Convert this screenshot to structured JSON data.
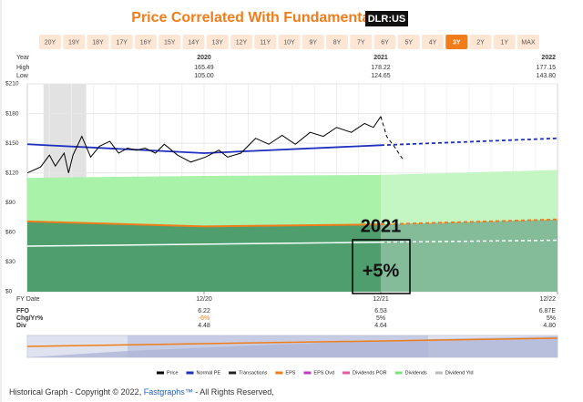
{
  "chart_data": {
    "type": "line",
    "title": "Price Correlated With Fundamentals",
    "ticker": "DLR:US",
    "timeframes": [
      "20Y",
      "19Y",
      "18Y",
      "17Y",
      "16Y",
      "15Y",
      "14Y",
      "13Y",
      "12Y",
      "11Y",
      "10Y",
      "9Y",
      "8Y",
      "7Y",
      "6Y",
      "5Y",
      "4Y",
      "3Y",
      "2Y",
      "1Y",
      "MAX"
    ],
    "active_timeframe": 17,
    "table": {
      "header": [
        "Year",
        "2020",
        "2021",
        "2022"
      ],
      "rows": [
        [
          "High",
          "165.49",
          "178.22",
          "177.15"
        ],
        [
          "Low",
          "105.00",
          "124.65",
          "143.80"
        ]
      ]
    },
    "fundamentals": [
      [
        "FFO",
        "6.22",
        "6.53",
        "6.87E"
      ],
      [
        "Chg/Yr%",
        "-6%",
        "5%",
        "5%"
      ],
      [
        "Div",
        "4.48",
        "4.64",
        "4.80"
      ]
    ],
    "x_label": "FY Date",
    "xlim": [
      0,
      36
    ],
    "xticks": [
      {
        "value": 12,
        "label": "12/20"
      },
      {
        "value": 24,
        "label": "12/21"
      },
      {
        "value": 36,
        "label": "12/22"
      }
    ],
    "ylim": [
      0,
      210
    ],
    "yticks": [
      {
        "value": 0,
        "label": "$0"
      },
      {
        "value": 30,
        "label": "$30"
      },
      {
        "value": 60,
        "label": "$60"
      },
      {
        "value": 90,
        "label": "$90"
      },
      {
        "value": 120,
        "label": "$120"
      },
      {
        "value": 150,
        "label": "$150"
      },
      {
        "value": 180,
        "label": "$180"
      },
      {
        "value": 210,
        "label": "$210"
      }
    ],
    "grid": true,
    "shade": [
      1.1,
      4.0
    ],
    "dashed_from_x": 24,
    "band": {
      "color": "#a9f2a9",
      "x": [
        0,
        12,
        24,
        36
      ],
      "values": [
        115,
        117,
        118,
        123
      ]
    },
    "lines": {
      "eps": {
        "color": "#f07d1a",
        "fill": "#4f9e6e",
        "x": [
          0,
          12,
          24,
          36
        ],
        "values": [
          71,
          66,
          68,
          73
        ]
      },
      "dividends": {
        "color": "#ffffff",
        "x": [
          0,
          12,
          24,
          36
        ],
        "values": [
          46,
          48,
          50,
          52
        ]
      },
      "normal_pe": {
        "color": "#1f2fbf",
        "x": [
          0,
          12,
          24,
          36
        ],
        "values": [
          149,
          140,
          148,
          155
        ]
      },
      "price": {
        "color": "#000000",
        "x": [
          0,
          0.9,
          1.5,
          1.9,
          2.5,
          2.8,
          3.1,
          3.7,
          4.3,
          4.9,
          5.6,
          6.2,
          6.8,
          7.4,
          8.0,
          8.7,
          9.3,
          10.2,
          11.1,
          12.1,
          13.0,
          13.6,
          14.5,
          15.5,
          16.4,
          17.3,
          18.2,
          19.2,
          20.1,
          21.0,
          22.0,
          22.9,
          23.5,
          24.0,
          24.4,
          24.9,
          25.4,
          25.5
        ],
        "values": [
          120,
          126,
          138,
          127,
          140,
          120,
          138,
          157,
          136,
          147,
          152,
          140,
          145,
          143,
          145,
          140,
          149,
          138,
          131,
          136,
          143,
          136,
          140,
          155,
          149,
          158,
          149,
          161,
          157,
          166,
          161,
          170,
          166,
          177,
          157,
          147,
          136,
          134
        ]
      }
    },
    "annotation": {
      "year": "2021",
      "change": "+5%",
      "x": 24
    },
    "legend": [
      {
        "label": "Price",
        "color": "#000000"
      },
      {
        "label": "Normal PE",
        "color": "#1f2fbf"
      },
      {
        "label": "Transactions",
        "color": "#222222"
      },
      {
        "label": "EPS",
        "color": "#f07d1a"
      },
      {
        "label": "EPS Ovd",
        "color": "#c03cc0"
      },
      {
        "label": "Dividends POR",
        "color": "#e85aa0"
      },
      {
        "label": "Dividends",
        "color": "#7ee07e"
      },
      {
        "label": "Dividend Yld",
        "color": "#bbbbbb"
      }
    ],
    "footer": [
      "Historical Graph - Copyright © 2022, ",
      "Fastgraphs™",
      " - All Rights Reserved,"
    ]
  }
}
